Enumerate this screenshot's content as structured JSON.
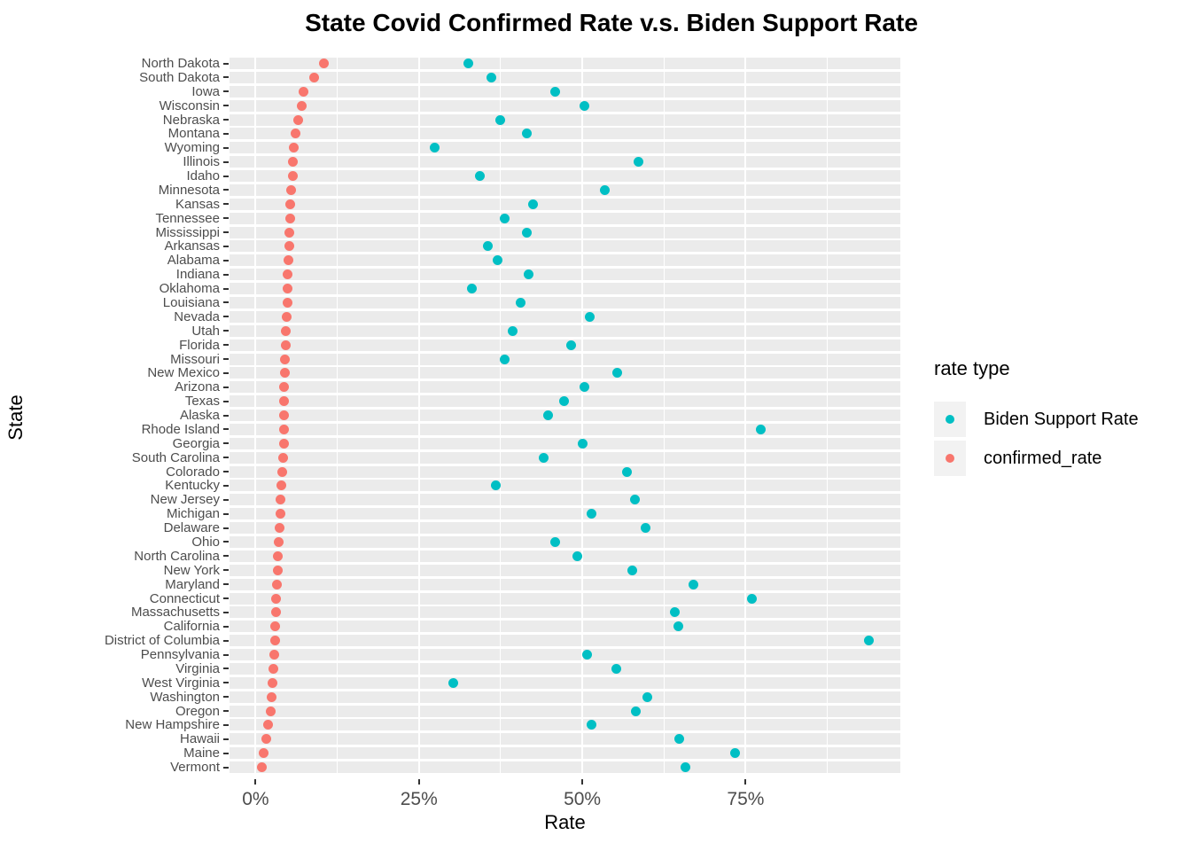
{
  "title": "State Covid Confirmed Rate v.s. Biden Support Rate",
  "x_axis": {
    "label": "Rate",
    "tick_labels": [
      "0%",
      "25%",
      "50%",
      "75%"
    ],
    "tick_values": [
      0,
      25,
      50,
      75
    ]
  },
  "y_axis": {
    "label": "State"
  },
  "legend": {
    "title": "rate type",
    "entries": [
      {
        "label": "Biden Support Rate",
        "color": "#00BFC4"
      },
      {
        "label": "confirmed_rate",
        "color": "#F8766D"
      }
    ]
  },
  "colors": {
    "biden_dot": "#00BFC4",
    "confirmed_dot": "#F8766D",
    "panel_band": "#EBEBEB",
    "gridline": "#FFFFFF",
    "axis_text": "#4D4D4D",
    "legend_key_bg": "#F2F2F2"
  },
  "chart_data": {
    "type": "scatter",
    "title": "State Covid Confirmed Rate v.s. Biden Support Rate",
    "xlabel": "Rate",
    "ylabel": "State",
    "x_unit": "percent",
    "xlim": [
      -4.3,
      98.6
    ],
    "grid": true,
    "legend_position": "right",
    "series_names": [
      "Biden Support Rate",
      "confirmed_rate"
    ],
    "categories_order": "top to bottom, sorted by confirmed_rate descending",
    "states": [
      {
        "name": "North Dakota",
        "biden_support_rate": 32.5,
        "confirmed_rate": 10.4
      },
      {
        "name": "South Dakota",
        "biden_support_rate": 36.1,
        "confirmed_rate": 9.0
      },
      {
        "name": "Iowa",
        "biden_support_rate": 45.8,
        "confirmed_rate": 7.3
      },
      {
        "name": "Wisconsin",
        "biden_support_rate": 50.3,
        "confirmed_rate": 7.0
      },
      {
        "name": "Nebraska",
        "biden_support_rate": 37.4,
        "confirmed_rate": 6.5
      },
      {
        "name": "Montana",
        "biden_support_rate": 41.5,
        "confirmed_rate": 6.05
      },
      {
        "name": "Wyoming",
        "biden_support_rate": 27.4,
        "confirmed_rate": 5.85
      },
      {
        "name": "Illinois",
        "biden_support_rate": 58.6,
        "confirmed_rate": 5.75
      },
      {
        "name": "Idaho",
        "biden_support_rate": 34.3,
        "confirmed_rate": 5.65
      },
      {
        "name": "Minnesota",
        "biden_support_rate": 53.4,
        "confirmed_rate": 5.5
      },
      {
        "name": "Kansas",
        "biden_support_rate": 42.4,
        "confirmed_rate": 5.35
      },
      {
        "name": "Tennessee",
        "biden_support_rate": 38.1,
        "confirmed_rate": 5.25
      },
      {
        "name": "Mississippi",
        "biden_support_rate": 41.5,
        "confirmed_rate": 5.2
      },
      {
        "name": "Arkansas",
        "biden_support_rate": 35.6,
        "confirmed_rate": 5.1
      },
      {
        "name": "Alabama",
        "biden_support_rate": 37.0,
        "confirmed_rate": 5.05
      },
      {
        "name": "Indiana",
        "biden_support_rate": 41.8,
        "confirmed_rate": 4.95
      },
      {
        "name": "Oklahoma",
        "biden_support_rate": 33.1,
        "confirmed_rate": 4.9
      },
      {
        "name": "Louisiana",
        "biden_support_rate": 40.6,
        "confirmed_rate": 4.85
      },
      {
        "name": "Nevada",
        "biden_support_rate": 51.1,
        "confirmed_rate": 4.75
      },
      {
        "name": "Utah",
        "biden_support_rate": 39.3,
        "confirmed_rate": 4.65
      },
      {
        "name": "Florida",
        "biden_support_rate": 48.3,
        "confirmed_rate": 4.6
      },
      {
        "name": "Missouri",
        "biden_support_rate": 38.1,
        "confirmed_rate": 4.5
      },
      {
        "name": "New Mexico",
        "biden_support_rate": 55.4,
        "confirmed_rate": 4.45
      },
      {
        "name": "Arizona",
        "biden_support_rate": 50.3,
        "confirmed_rate": 4.4
      },
      {
        "name": "Texas",
        "biden_support_rate": 47.2,
        "confirmed_rate": 4.38
      },
      {
        "name": "Alaska",
        "biden_support_rate": 44.7,
        "confirmed_rate": 4.35
      },
      {
        "name": "Rhode Island",
        "biden_support_rate": 77.3,
        "confirmed_rate": 4.33
      },
      {
        "name": "Georgia",
        "biden_support_rate": 50.1,
        "confirmed_rate": 4.3
      },
      {
        "name": "South Carolina",
        "biden_support_rate": 44.1,
        "confirmed_rate": 4.25
      },
      {
        "name": "Colorado",
        "biden_support_rate": 56.9,
        "confirmed_rate": 4.05
      },
      {
        "name": "Kentucky",
        "biden_support_rate": 36.7,
        "confirmed_rate": 3.95
      },
      {
        "name": "New Jersey",
        "biden_support_rate": 58.0,
        "confirmed_rate": 3.85
      },
      {
        "name": "Michigan",
        "biden_support_rate": 51.4,
        "confirmed_rate": 3.78
      },
      {
        "name": "Delaware",
        "biden_support_rate": 59.7,
        "confirmed_rate": 3.65
      },
      {
        "name": "Ohio",
        "biden_support_rate": 45.8,
        "confirmed_rate": 3.6
      },
      {
        "name": "North Carolina",
        "biden_support_rate": 49.2,
        "confirmed_rate": 3.45
      },
      {
        "name": "New York",
        "biden_support_rate": 57.7,
        "confirmed_rate": 3.35
      },
      {
        "name": "Maryland",
        "biden_support_rate": 67.0,
        "confirmed_rate": 3.25
      },
      {
        "name": "Connecticut",
        "biden_support_rate": 75.9,
        "confirmed_rate": 3.2
      },
      {
        "name": "Massachusetts",
        "biden_support_rate": 64.1,
        "confirmed_rate": 3.1
      },
      {
        "name": "California",
        "biden_support_rate": 64.7,
        "confirmed_rate": 3.0
      },
      {
        "name": "District of Columbia",
        "biden_support_rate": 93.8,
        "confirmed_rate": 2.95
      },
      {
        "name": "Pennsylvania",
        "biden_support_rate": 50.7,
        "confirmed_rate": 2.88
      },
      {
        "name": "Virginia",
        "biden_support_rate": 55.2,
        "confirmed_rate": 2.78
      },
      {
        "name": "West Virginia",
        "biden_support_rate": 30.2,
        "confirmed_rate": 2.6
      },
      {
        "name": "Washington",
        "biden_support_rate": 59.9,
        "confirmed_rate": 2.4
      },
      {
        "name": "Oregon",
        "biden_support_rate": 58.2,
        "confirmed_rate": 2.28
      },
      {
        "name": "New Hampshire",
        "biden_support_rate": 51.4,
        "confirmed_rate": 1.9
      },
      {
        "name": "Hawaii",
        "biden_support_rate": 64.9,
        "confirmed_rate": 1.6
      },
      {
        "name": "Maine",
        "biden_support_rate": 73.4,
        "confirmed_rate": 1.3
      },
      {
        "name": "Vermont",
        "biden_support_rate": 65.8,
        "confirmed_rate": 0.92
      }
    ]
  }
}
